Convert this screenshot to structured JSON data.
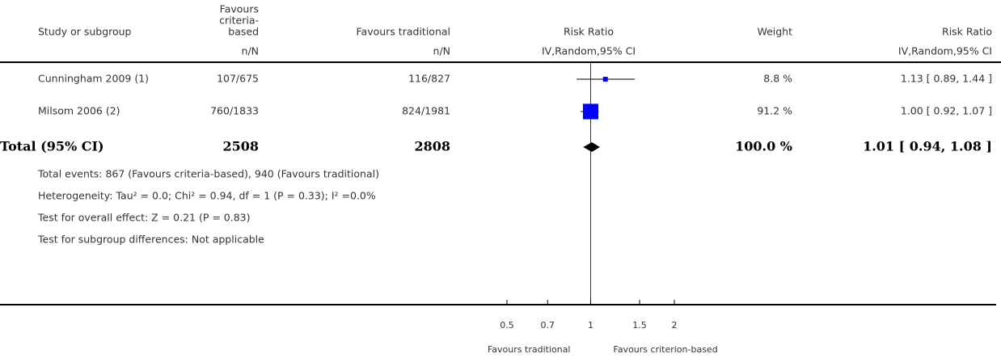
{
  "chart_data": {
    "type": "forest",
    "columns": [
      {
        "title": [
          "Study or subgroup"
        ]
      },
      {
        "title": [
          "Favours",
          "criteria-",
          "based"
        ],
        "sub": "n/N"
      },
      {
        "title": [
          "Favours traditional"
        ],
        "sub": "n/N"
      },
      {
        "title": [
          "Risk Ratio"
        ],
        "sub": "IV,Random,95% CI"
      },
      {
        "title": [
          "Weight"
        ]
      },
      {
        "title": [
          "Risk Ratio"
        ],
        "sub": "IV,Random,95% CI"
      }
    ],
    "studies": [
      {
        "name": "Cunningham 2009 (1)",
        "n1": "107/675",
        "n2": "116/827",
        "weight": 8.8,
        "weight_label": "8.8 %",
        "rr": 1.13,
        "lo": 0.89,
        "hi": 1.44,
        "rr_label": "1.13 [ 0.89, 1.44 ]"
      },
      {
        "name": "Milsom 2006 (2)",
        "n1": "760/1833",
        "n2": "824/1981",
        "weight": 91.2,
        "weight_label": "91.2 %",
        "rr": 1.0,
        "lo": 0.92,
        "hi": 1.07,
        "rr_label": "1.00 [ 0.92, 1.07 ]"
      }
    ],
    "total": {
      "name": "Total (95% CI)",
      "n1": 2508,
      "n2": 2808,
      "weight": 100.0,
      "weight_label": "100.0 %",
      "rr": 1.01,
      "lo": 0.94,
      "hi": 1.08,
      "rr_label": "1.01 [ 0.94, 1.08 ]"
    },
    "notes": [
      "Total events: 867 (Favours criteria-based), 940 (Favours traditional)",
      "Heterogeneity: Tau² = 0.0; Chi² = 0.94, df = 1 (P = 0.33); I² =0.0%",
      "Test for overall effect: Z = 0.21 (P = 0.83)",
      "Test for subgroup differences: Not applicable"
    ],
    "xscale": "log",
    "xlim": [
      0.5,
      2
    ],
    "xticks": [
      0.5,
      0.7,
      1,
      1.5,
      2
    ],
    "x_label_left": "Favours traditional",
    "x_label_right": "Favours criterion-based",
    "color": "#0000ff"
  }
}
